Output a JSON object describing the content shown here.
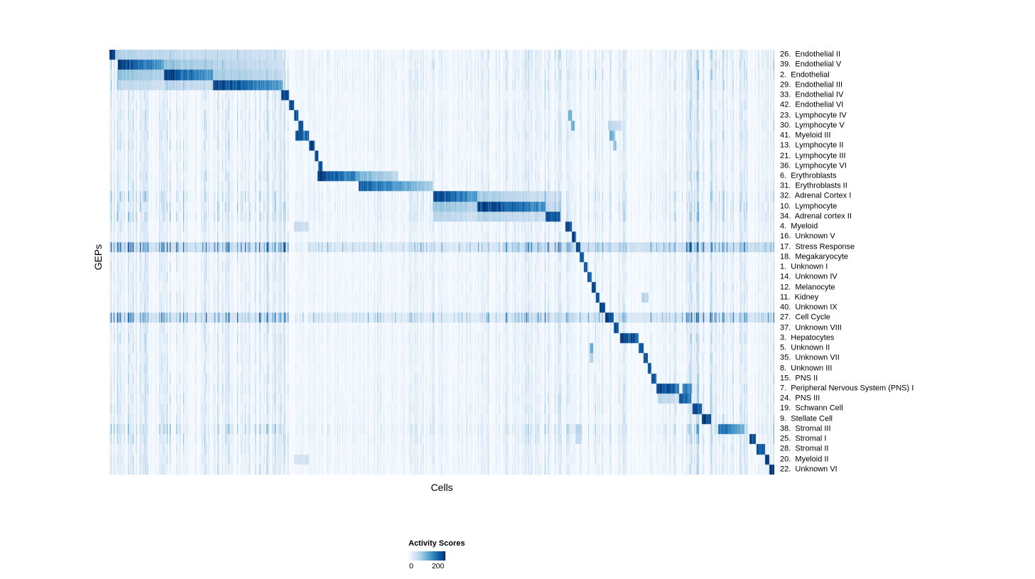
{
  "chart_data": {
    "type": "heatmap",
    "title": "",
    "xlabel": "Cells",
    "ylabel": "GEPs",
    "legend": {
      "title": "Activity Scores",
      "min": 0,
      "max": 200,
      "tick_labels": [
        "0",
        "200"
      ]
    },
    "colormap": [
      "#f7fbff",
      "#deebf7",
      "#c6dbef",
      "#9ecae1",
      "#6baed6",
      "#4292c6",
      "#2171b5",
      "#08519c",
      "#08306b"
    ],
    "noise_bands": [
      [
        0.0,
        0.27,
        1.0
      ],
      [
        0.27,
        0.44,
        0.45
      ],
      [
        0.44,
        0.62,
        0.6
      ],
      [
        0.62,
        0.78,
        1.0
      ],
      [
        0.78,
        0.87,
        0.6
      ],
      [
        0.87,
        1.01,
        1.05
      ]
    ],
    "rows": [
      {
        "label": "26.  Endothelial II",
        "noise": 0.6,
        "blocks": [
          [
            0.0,
            0.008,
            1.0,
            1.0
          ],
          [
            0.008,
            0.155,
            0.3,
            0.22
          ],
          [
            0.155,
            0.26,
            0.25,
            0.18
          ]
        ]
      },
      {
        "label": "39.  Endothelial V",
        "noise": 0.6,
        "blocks": [
          [
            0.012,
            0.082,
            0.95,
            0.55
          ],
          [
            0.082,
            0.155,
            0.4,
            0.3
          ],
          [
            0.155,
            0.26,
            0.3,
            0.2
          ]
        ]
      },
      {
        "label": "2.  Endothelial",
        "noise": 0.6,
        "blocks": [
          [
            0.012,
            0.082,
            0.4,
            0.3
          ],
          [
            0.082,
            0.155,
            0.95,
            0.55
          ],
          [
            0.155,
            0.26,
            0.35,
            0.25
          ]
        ]
      },
      {
        "label": "29.  Endothelial III",
        "noise": 0.6,
        "blocks": [
          [
            0.012,
            0.082,
            0.25,
            0.2
          ],
          [
            0.082,
            0.155,
            0.28,
            0.22
          ],
          [
            0.155,
            0.26,
            0.95,
            0.55
          ]
        ]
      },
      {
        "label": "33.  Endothelial IV",
        "noise": 0.45,
        "blocks": [
          [
            0.258,
            0.27,
            0.95,
            0.85
          ]
        ]
      },
      {
        "label": "42.  Endothelial VI",
        "noise": 0.45,
        "blocks": [
          [
            0.27,
            0.277,
            0.92,
            0.85
          ]
        ]
      },
      {
        "label": "23.  Lymphocyte IV",
        "noise": 0.5,
        "blocks": [
          [
            0.277,
            0.284,
            0.9,
            0.85
          ],
          [
            0.69,
            0.695,
            0.5,
            0.5
          ]
        ]
      },
      {
        "label": "30.  Lymphocyte V",
        "noise": 0.5,
        "blocks": [
          [
            0.284,
            0.291,
            0.9,
            0.85
          ],
          [
            0.694,
            0.699,
            0.45,
            0.45
          ],
          [
            0.75,
            0.77,
            0.3,
            0.2
          ]
        ]
      },
      {
        "label": "41.  Myeloid III",
        "noise": 0.5,
        "blocks": [
          [
            0.279,
            0.3,
            0.95,
            0.7
          ],
          [
            0.752,
            0.76,
            0.55,
            0.4
          ]
        ]
      },
      {
        "label": "13.  Lymphocyte II",
        "noise": 0.5,
        "blocks": [
          [
            0.3,
            0.308,
            0.9,
            0.85
          ],
          [
            0.757,
            0.762,
            0.4,
            0.4
          ]
        ]
      },
      {
        "label": "21.  Lymphocyte III",
        "noise": 0.45,
        "blocks": [
          [
            0.308,
            0.314,
            0.9,
            0.85
          ]
        ]
      },
      {
        "label": "36.  Lymphocyte VI",
        "noise": 0.45,
        "blocks": [
          [
            0.314,
            0.32,
            0.85,
            0.8
          ]
        ]
      },
      {
        "label": "6.  Erythroblasts",
        "noise": 0.5,
        "blocks": [
          [
            0.313,
            0.372,
            0.95,
            0.6
          ],
          [
            0.372,
            0.434,
            0.5,
            0.25
          ]
        ]
      },
      {
        "label": "31.  Erythroblasts II",
        "noise": 0.5,
        "blocks": [
          [
            0.375,
            0.487,
            0.85,
            0.3
          ]
        ]
      },
      {
        "label": "32.  Adrenal Cortex I",
        "noise": 0.7,
        "blocks": [
          [
            0.487,
            0.553,
            0.95,
            0.55
          ],
          [
            0.553,
            0.655,
            0.35,
            0.2
          ],
          [
            0.655,
            0.68,
            0.25,
            0.15
          ]
        ]
      },
      {
        "label": "10.  Lymphocyte",
        "noise": 0.7,
        "blocks": [
          [
            0.487,
            0.553,
            0.4,
            0.3
          ],
          [
            0.553,
            0.655,
            0.95,
            0.6
          ],
          [
            0.655,
            0.68,
            0.3,
            0.2
          ]
        ]
      },
      {
        "label": "34.  Adrenal cortex II",
        "noise": 0.7,
        "blocks": [
          [
            0.487,
            0.553,
            0.3,
            0.2
          ],
          [
            0.553,
            0.655,
            0.3,
            0.2
          ],
          [
            0.655,
            0.678,
            0.95,
            0.8
          ]
        ]
      },
      {
        "label": "4.  Myeloid",
        "noise": 0.5,
        "blocks": [
          [
            0.685,
            0.695,
            0.92,
            0.85
          ],
          [
            0.277,
            0.3,
            0.25,
            0.2
          ]
        ]
      },
      {
        "label": "16.  Unknown V",
        "noise": 0.45,
        "blocks": [
          [
            0.695,
            0.701,
            0.9,
            0.85
          ]
        ]
      },
      {
        "label": "17.  Stress Response",
        "noise": 1.6,
        "blocks": [
          [
            0.701,
            0.708,
            0.95,
            0.9
          ],
          [
            0.0,
            0.27,
            0.18,
            0.18
          ],
          [
            0.3,
            0.6,
            0.12,
            0.12
          ],
          [
            0.6,
            1.001,
            0.2,
            0.2
          ]
        ]
      },
      {
        "label": "18.  Megakaryocyte",
        "noise": 0.45,
        "blocks": [
          [
            0.707,
            0.713,
            0.9,
            0.85
          ]
        ]
      },
      {
        "label": "1.  Unknown I",
        "noise": 0.45,
        "blocks": [
          [
            0.713,
            0.719,
            0.85,
            0.8
          ]
        ]
      },
      {
        "label": "14.  Unknown IV",
        "noise": 0.45,
        "blocks": [
          [
            0.719,
            0.725,
            0.85,
            0.8
          ]
        ]
      },
      {
        "label": "12.  Melanocyte",
        "noise": 0.45,
        "blocks": [
          [
            0.725,
            0.731,
            0.9,
            0.85
          ]
        ]
      },
      {
        "label": "11.  Kidney",
        "noise": 0.45,
        "blocks": [
          [
            0.731,
            0.737,
            0.9,
            0.85
          ],
          [
            0.8,
            0.81,
            0.3,
            0.25
          ]
        ]
      },
      {
        "label": "40.  Unknown IX",
        "noise": 0.45,
        "blocks": [
          [
            0.737,
            0.745,
            0.9,
            0.85
          ]
        ]
      },
      {
        "label": "27.  Cell Cycle",
        "noise": 1.5,
        "blocks": [
          [
            0.745,
            0.758,
            0.9,
            0.85
          ],
          [
            0.0,
            0.27,
            0.15,
            0.15
          ],
          [
            0.3,
            0.6,
            0.1,
            0.1
          ],
          [
            0.6,
            0.74,
            0.15,
            0.15
          ],
          [
            0.76,
            1.001,
            0.15,
            0.15
          ]
        ]
      },
      {
        "label": "37.  Unknown VIII",
        "noise": 0.45,
        "blocks": [
          [
            0.758,
            0.765,
            0.9,
            0.85
          ]
        ]
      },
      {
        "label": "3.  Hepatocytes",
        "noise": 0.5,
        "blocks": [
          [
            0.768,
            0.795,
            0.95,
            0.8
          ]
        ]
      },
      {
        "label": "5.  Unknown II",
        "noise": 0.45,
        "blocks": [
          [
            0.795,
            0.803,
            0.9,
            0.85
          ],
          [
            0.722,
            0.727,
            0.5,
            0.5
          ]
        ]
      },
      {
        "label": "35.  Unknown VII",
        "noise": 0.45,
        "blocks": [
          [
            0.803,
            0.809,
            0.9,
            0.85
          ],
          [
            0.722,
            0.727,
            0.3,
            0.3
          ]
        ]
      },
      {
        "label": "8.  Unknown III",
        "noise": 0.45,
        "blocks": [
          [
            0.809,
            0.815,
            0.85,
            0.8
          ]
        ]
      },
      {
        "label": "15.  PNS II",
        "noise": 0.5,
        "blocks": [
          [
            0.815,
            0.822,
            0.9,
            0.85
          ]
        ]
      },
      {
        "label": "7.  Peripheral Nervous System (PNS) I",
        "noise": 0.5,
        "blocks": [
          [
            0.822,
            0.856,
            0.95,
            0.75
          ],
          [
            0.862,
            0.876,
            0.75,
            0.6
          ]
        ]
      },
      {
        "label": "24.  PNS III",
        "noise": 0.5,
        "blocks": [
          [
            0.824,
            0.856,
            0.3,
            0.2
          ],
          [
            0.856,
            0.874,
            0.9,
            0.7
          ]
        ]
      },
      {
        "label": "19.  Schwann Cell",
        "noise": 0.5,
        "blocks": [
          [
            0.877,
            0.89,
            0.9,
            0.8
          ]
        ]
      },
      {
        "label": "9.  Stellate Cell",
        "noise": 0.5,
        "blocks": [
          [
            0.891,
            0.904,
            0.95,
            0.85
          ]
        ]
      },
      {
        "label": "38.  Stromal III",
        "noise": 0.8,
        "blocks": [
          [
            0.915,
            0.953,
            0.8,
            0.45
          ],
          [
            0.7,
            0.71,
            0.3,
            0.3
          ]
        ]
      },
      {
        "label": "25.  Stromal I",
        "noise": 0.6,
        "blocks": [
          [
            0.962,
            0.972,
            0.9,
            0.85
          ],
          [
            0.7,
            0.71,
            0.25,
            0.25
          ]
        ]
      },
      {
        "label": "28.  Stromal II",
        "noise": 0.5,
        "blocks": [
          [
            0.973,
            0.986,
            0.9,
            0.8
          ]
        ]
      },
      {
        "label": "20.  Myeloid II",
        "noise": 0.5,
        "blocks": [
          [
            0.986,
            0.992,
            0.9,
            0.9
          ],
          [
            0.277,
            0.3,
            0.18,
            0.18
          ]
        ]
      },
      {
        "label": "22.  Unknown VI",
        "noise": 0.5,
        "blocks": [
          [
            0.992,
            1.001,
            0.95,
            0.95
          ]
        ]
      }
    ]
  }
}
